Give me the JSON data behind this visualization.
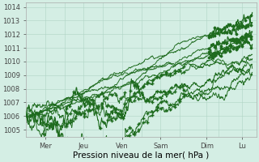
{
  "xlabel": "Pression niveau de la mer( hPa )",
  "ylim": [
    1004.5,
    1014.3
  ],
  "yticks": [
    1005,
    1006,
    1007,
    1008,
    1009,
    1010,
    1011,
    1012,
    1013,
    1014
  ],
  "xlim": [
    0.0,
    5.8
  ],
  "xtick_positions": [
    0.48,
    1.45,
    2.42,
    3.39,
    4.55,
    5.45
  ],
  "xticklabels": [
    "Mer",
    "Jeu",
    "Ven",
    "Sam",
    "Dim",
    "Lu"
  ],
  "bg_color": "#d4eee4",
  "plot_bg": "#d4eee4",
  "grid_color": "#b0d4c4",
  "line_color": "#1e6b1e",
  "vline_positions": [
    0.97,
    1.94,
    2.91,
    3.88,
    4.85
  ],
  "xlabel_fontsize": 7.5,
  "tick_fontsize": 6.0
}
